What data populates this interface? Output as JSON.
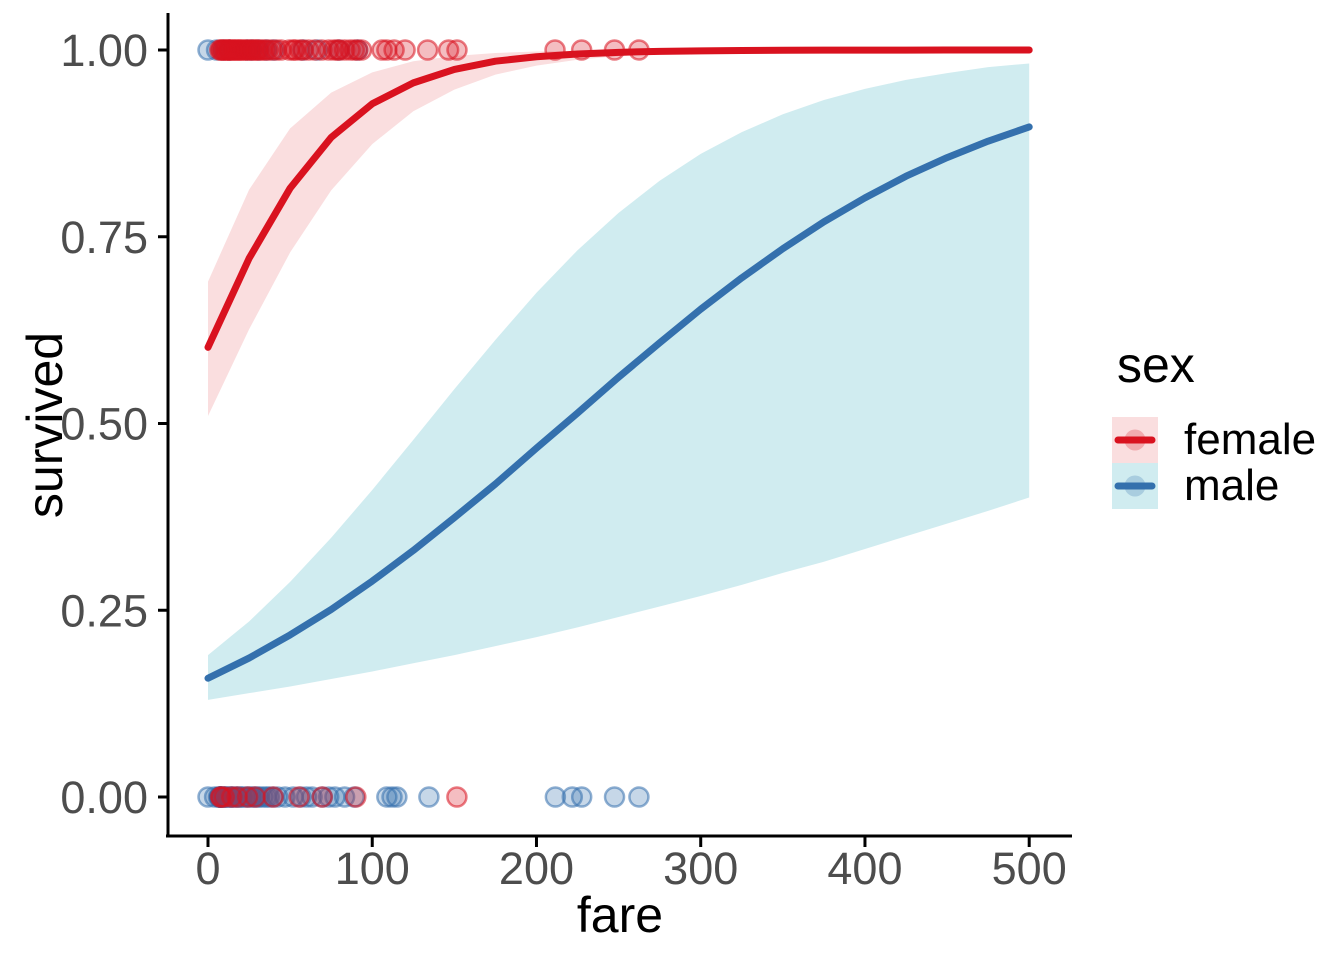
{
  "chart_data": {
    "type": "line",
    "subtype": "logistic-regression-with-ci-ribbons-and-scatter",
    "title": "",
    "xlabel": "fare",
    "ylabel": "survived",
    "xlim": [
      0,
      500
    ],
    "ylim": [
      0.0,
      1.0
    ],
    "grid": "off",
    "background": "#ffffff",
    "axis_line_color": "#000000",
    "tick_label_color": "#4d4d4d",
    "x_ticks": [
      {
        "label": "0",
        "value": 0
      },
      {
        "label": "100",
        "value": 100
      },
      {
        "label": "200",
        "value": 200
      },
      {
        "label": "300",
        "value": 300
      },
      {
        "label": "400",
        "value": 400
      },
      {
        "label": "500",
        "value": 500
      }
    ],
    "y_ticks": [
      {
        "label": "0.00",
        "value": 0.0
      },
      {
        "label": "0.25",
        "value": 0.25
      },
      {
        "label": "0.50",
        "value": 0.5
      },
      {
        "label": "0.75",
        "value": 0.75
      },
      {
        "label": "1.00",
        "value": 1.0
      }
    ],
    "legend": {
      "title": "sex",
      "position": "right",
      "entries": [
        {
          "label": "female",
          "line_color": "#D9121F",
          "fill_color": "rgba(217,18,31,0.14)"
        },
        {
          "label": "male",
          "line_color": "#3470AD",
          "fill_color": "rgba(40,170,185,0.22)"
        }
      ]
    },
    "x_samples": [
      0,
      25,
      50,
      75,
      100,
      125,
      150,
      175,
      200,
      225,
      250,
      275,
      300,
      325,
      350,
      375,
      400,
      425,
      450,
      475,
      500
    ],
    "series": [
      {
        "name": "female",
        "line_color": "#D9121F",
        "ribbon_fill": "rgba(217,18,31,0.14)",
        "y": [
          0.602,
          0.721,
          0.815,
          0.883,
          0.928,
          0.956,
          0.974,
          0.985,
          0.991,
          0.9947,
          0.9969,
          0.9982,
          0.9989,
          0.9994,
          0.9996,
          0.9998,
          0.9999,
          0.9999,
          1.0,
          1.0,
          1.0
        ],
        "ci_upper": [
          0.69,
          0.813,
          0.895,
          0.943,
          0.97,
          0.985,
          0.992,
          0.996,
          0.998,
          0.9989,
          0.9995,
          0.9997,
          0.9999,
          0.9999,
          1.0,
          1.0,
          1.0,
          1.0,
          1.0,
          1.0,
          1.0
        ],
        "ci_lower": [
          0.51,
          0.626,
          0.729,
          0.812,
          0.874,
          0.918,
          0.947,
          0.967,
          0.979,
          0.987,
          0.992,
          0.995,
          0.997,
          0.998,
          0.9988,
          0.9992,
          0.9995,
          0.9997,
          0.9998,
          0.9999,
          0.9999
        ]
      },
      {
        "name": "male",
        "line_color": "#3470AD",
        "ribbon_fill": "rgba(40,170,185,0.22)",
        "y": [
          0.159,
          0.186,
          0.217,
          0.251,
          0.289,
          0.33,
          0.374,
          0.419,
          0.467,
          0.514,
          0.562,
          0.608,
          0.653,
          0.695,
          0.734,
          0.77,
          0.802,
          0.831,
          0.856,
          0.878,
          0.897
        ],
        "ci_upper": [
          0.19,
          0.235,
          0.288,
          0.347,
          0.411,
          0.478,
          0.546,
          0.612,
          0.675,
          0.732,
          0.782,
          0.825,
          0.861,
          0.89,
          0.914,
          0.933,
          0.948,
          0.96,
          0.969,
          0.977,
          0.982
        ],
        "ci_lower": [
          0.13,
          0.139,
          0.148,
          0.158,
          0.168,
          0.179,
          0.19,
          0.202,
          0.214,
          0.227,
          0.241,
          0.255,
          0.269,
          0.284,
          0.3,
          0.315,
          0.332,
          0.349,
          0.366,
          0.383,
          0.401
        ]
      }
    ],
    "points": {
      "survived_1": {
        "female": [
          7.2,
          7.9,
          8.6,
          9.5,
          10.5,
          11.1,
          12,
          12.9,
          13,
          13.9,
          15,
          15.9,
          16.7,
          17.8,
          18.7,
          19.5,
          20.5,
          21.7,
          23,
          24,
          25.5,
          26.3,
          27.7,
          29.1,
          30,
          31.3,
          33,
          34.7,
          36.5,
          39,
          41.6,
          44.5,
          49.5,
          52,
          53.1,
          56,
          57.9,
          61.2,
          65,
          69.3,
          73.5,
          76.7,
          78.8,
          80,
          83.2,
          86.5,
          89.1,
          91.1,
          93.5,
          106,
          108.9,
          113.3,
          120,
          133.7,
          146.5,
          151.6,
          211.3,
          227.5,
          247.5,
          262.4
        ],
        "male": [
          0,
          5.2,
          9.5,
          13,
          24,
          26.6,
          30.7,
          35.5,
          40.1,
          57.8,
          66.6,
          79.7,
          91.1
        ]
      },
      "survived_0": {
        "male": [
          0,
          4.01,
          6.45,
          7.05,
          7.13,
          7.23,
          7.25,
          7.31,
          7.55,
          7.78,
          7.9,
          8.05,
          8.3,
          8.66,
          9.22,
          9.84,
          10.17,
          10.5,
          11.13,
          12.05,
          13,
          13.9,
          14.46,
          15.05,
          16.1,
          17.4,
          18,
          19.26,
          20.21,
          21,
          23,
          24.15,
          26,
          27,
          28.5,
          30.07,
          31.28,
          33.5,
          35.5,
          37.25,
          39.69,
          42.4,
          46.9,
          51.86,
          56.5,
          60,
          63.36,
          69.55,
          73.5,
          77.29,
          83.16,
          89.1,
          108.9,
          112.05,
          115,
          134.5,
          211.5,
          221.8,
          227.53,
          247.52,
          262.38
        ],
        "female": [
          7.65,
          8.05,
          9.84,
          14.46,
          17.8,
          24.15,
          28.71,
          39.69,
          55.44,
          69.55,
          90,
          151.55
        ]
      },
      "style": {
        "radius": 9.5,
        "fill_opacity": 0.28,
        "stroke_opacity": 0.55,
        "stroke_width": 2.5
      }
    }
  }
}
